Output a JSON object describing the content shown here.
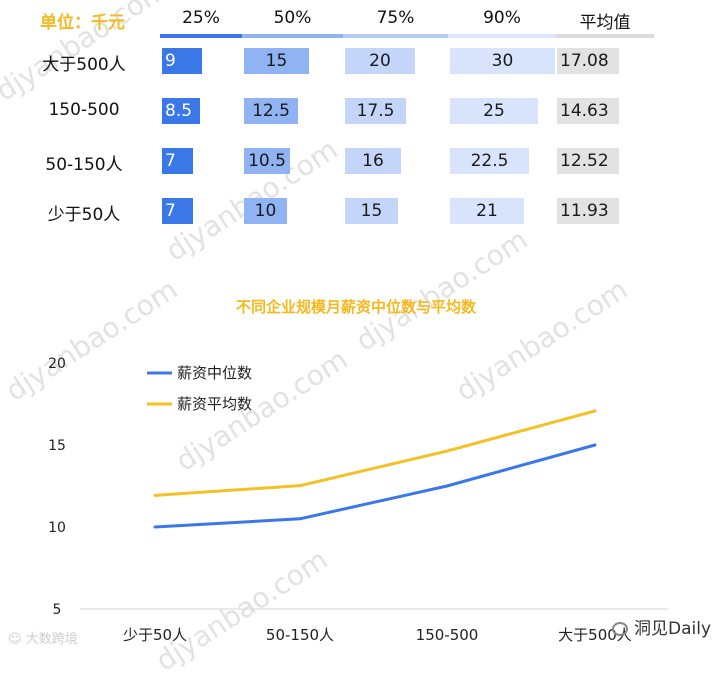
{
  "table": {
    "unit_label": "单位：千元",
    "columns": [
      "25%",
      "50%",
      "75%",
      "90%",
      "平均值"
    ],
    "rows": [
      {
        "label": "大于500人",
        "values": [
          "9",
          "15",
          "20",
          "30",
          "17.08"
        ]
      },
      {
        "label": "150-500",
        "values": [
          "8.5",
          "12.5",
          "17.5",
          "25",
          "14.63"
        ]
      },
      {
        "label": "50-150人",
        "values": [
          "7",
          "10.5",
          "16",
          "22.5",
          "12.52"
        ]
      },
      {
        "label": "少于50人",
        "values": [
          "7",
          "10",
          "15",
          "21",
          "11.93"
        ]
      }
    ],
    "colors": {
      "c25": "#3a78ea",
      "c50": "#8fb3f3",
      "c75": "#c3d6f9",
      "c90": "#d7e4fb",
      "avg": "#e2e2e2",
      "header_line_25": "#3a78ea",
      "header_line_50": "#8fb3f3",
      "header_line_75": "#b4cbf5",
      "header_line_90": "#dbe6fb",
      "header_line_avg": "#dcdcdc"
    }
  },
  "chart_data": {
    "type": "line",
    "title": "不同企业规模月薪资中位数与平均数",
    "categories": [
      "少于50人",
      "50-150人",
      "150-500",
      "大于500人"
    ],
    "series": [
      {
        "name": "薪资中位数",
        "values": [
          10,
          10.5,
          12.5,
          15
        ],
        "color": "#3a78ea"
      },
      {
        "name": "薪资平均数",
        "values": [
          11.93,
          12.52,
          14.63,
          17.08
        ],
        "color": "#f5c022"
      }
    ],
    "yticks": [
      5,
      10,
      15,
      20
    ],
    "ylim": [
      5,
      20
    ],
    "xlabel": "",
    "ylabel": "",
    "grid": false,
    "legend": "top-left"
  },
  "watermark": "djyanbao.com",
  "logos": {
    "left": "大数跨境",
    "right": "洞见Daily"
  }
}
